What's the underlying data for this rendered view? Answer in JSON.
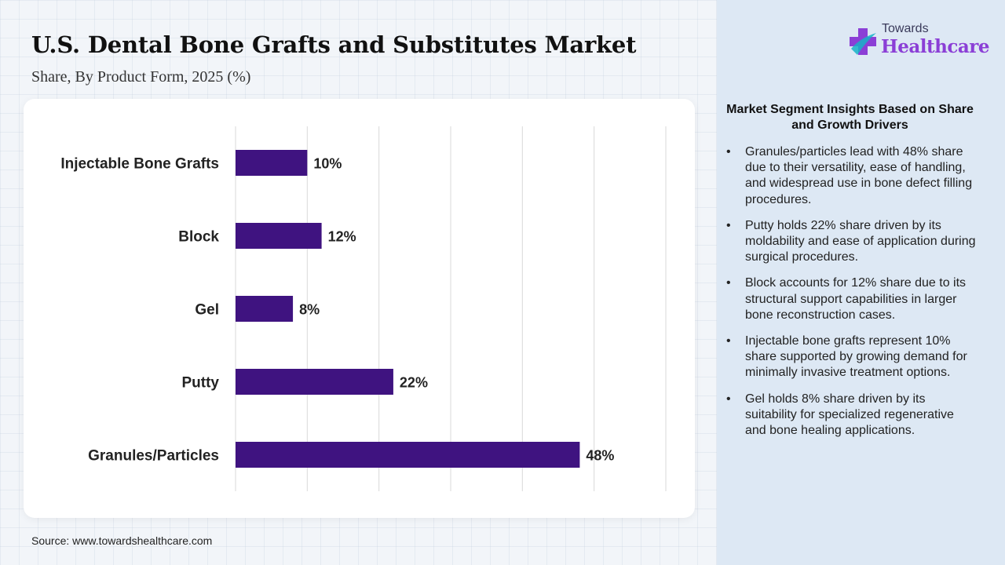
{
  "header": {
    "title": "U.S. Dental Bone Grafts and Substitutes Market",
    "subtitle": "Share, By Product Form, 2025 (%)"
  },
  "source": "Source: www.towardshealthcare.com",
  "logo": {
    "top_text": "Towards",
    "main_text": "Healthcare",
    "icon": "medical-cross-icon"
  },
  "insights": {
    "heading": "Market Segment Insights Based on Share and Growth Drivers",
    "bullet_symbol": "•",
    "items": [
      "Granules/particles lead with 48% share due to their versatility, ease of handling, and widespread use in bone defect filling procedures.",
      "Putty holds 22% share driven by its moldability and ease of application during surgical procedures.",
      "Block accounts for 12% share due to its structural support capabilities in larger bone reconstruction cases.",
      "Injectable bone grafts represent 10% share supported by growing demand for minimally invasive treatment options.",
      "Gel holds 8% share driven by its suitability for specialized regenerative and bone healing applications."
    ]
  },
  "colors": {
    "bar": "#3f1380",
    "grid": "#d9d9d9",
    "logo_accent": "#8b3fd6",
    "panel": "#dde8f4"
  },
  "chart_data": {
    "type": "bar",
    "orientation": "horizontal",
    "categories": [
      "Injectable Bone Grafts",
      "Block",
      "Gel",
      "Putty",
      "Granules/Particles"
    ],
    "values": [
      10,
      12,
      8,
      22,
      48
    ],
    "data_labels": [
      "10%",
      "12%",
      "8%",
      "22%",
      "48%"
    ],
    "xlim": [
      0,
      60
    ],
    "grid": true,
    "legend": "none"
  }
}
